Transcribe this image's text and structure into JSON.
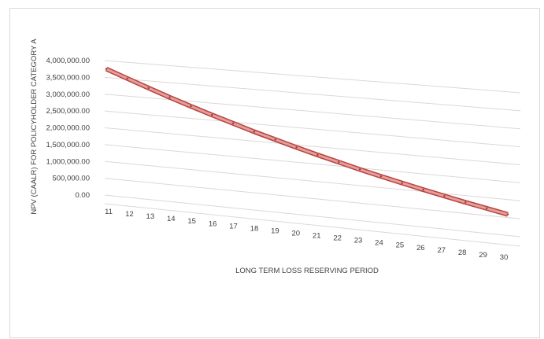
{
  "chart_data": {
    "type": "line",
    "title": "",
    "xlabel": "LONG TERM LOSS RESERVING PERIOD",
    "ylabel": "NPV (CAALR) FOR POLICYHOLDER CATEGORY A",
    "categories": [
      "11",
      "12",
      "13",
      "14",
      "15",
      "16",
      "17",
      "18",
      "19",
      "20",
      "21",
      "22",
      "23",
      "24",
      "25",
      "26",
      "27",
      "28",
      "29",
      "30"
    ],
    "series": [
      {
        "name": "",
        "color": "#c0504d",
        "values": [
          3750000,
          3520000,
          3290000,
          3070000,
          2860000,
          2660000,
          2470000,
          2280000,
          2110000,
          1940000,
          1780000,
          1630000,
          1480000,
          1340000,
          1210000,
          1080000,
          960000,
          840000,
          730000,
          620000
        ]
      }
    ],
    "yticks": [
      "4,000,000.00",
      "3,500,000.00",
      "3,000,000.00",
      "2,500,000.00",
      "2,000,000.00",
      "1,500,000.00",
      "1,000,000.00",
      "500,000.00",
      "0.00"
    ],
    "ylim": [
      0,
      4000000
    ],
    "grid": true,
    "perspective": "3d"
  }
}
